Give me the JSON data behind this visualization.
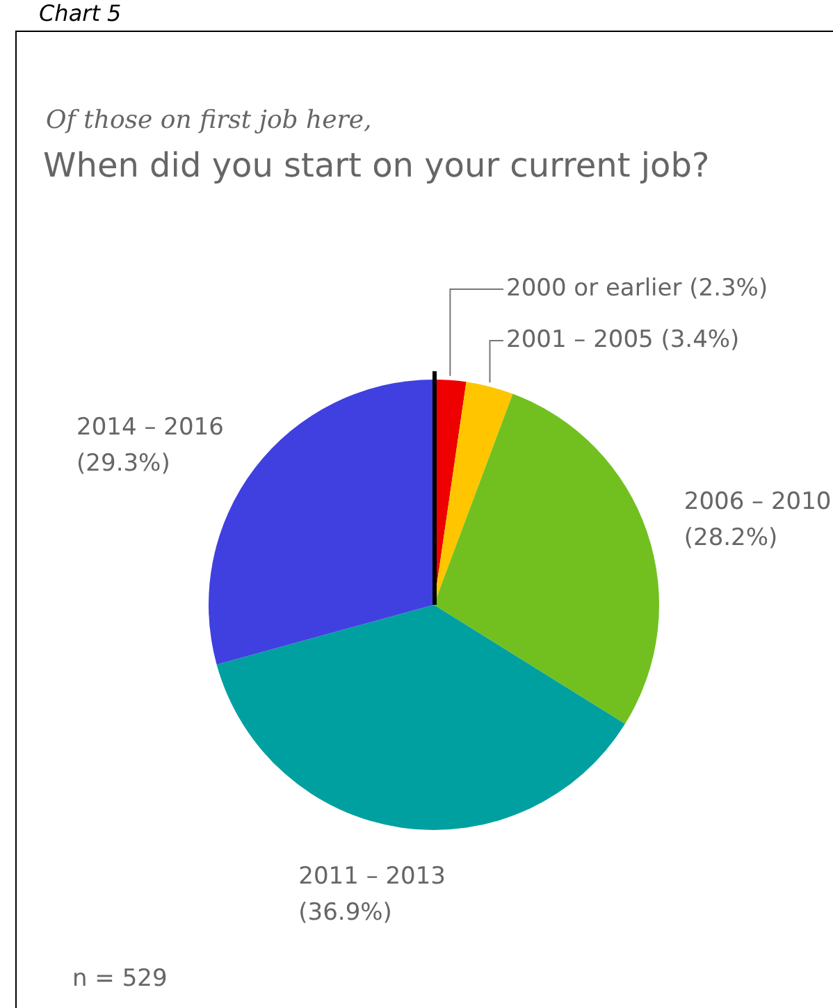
{
  "chart_data": {
    "type": "pie",
    "subtitle": "Of those on first job here,",
    "title": "When did you start on your current job?",
    "categories": [
      "2000 or earlier",
      "2001 – 2005",
      "2006 – 2010",
      "2011 – 2013",
      "2014 – 2016"
    ],
    "values": [
      2.3,
      3.4,
      28.2,
      36.9,
      29.3
    ],
    "value_labels": [
      "(2.3%)",
      "(3.4%)",
      "(28.2%)",
      "(36.9%)",
      "(29.3%)"
    ],
    "colors": [
      "#ee0000",
      "#ffc600",
      "#72c020",
      "#00a0a0",
      "#4040e0"
    ],
    "legend": false,
    "annotations": [
      "Chart 5",
      "n = 529"
    ]
  }
}
